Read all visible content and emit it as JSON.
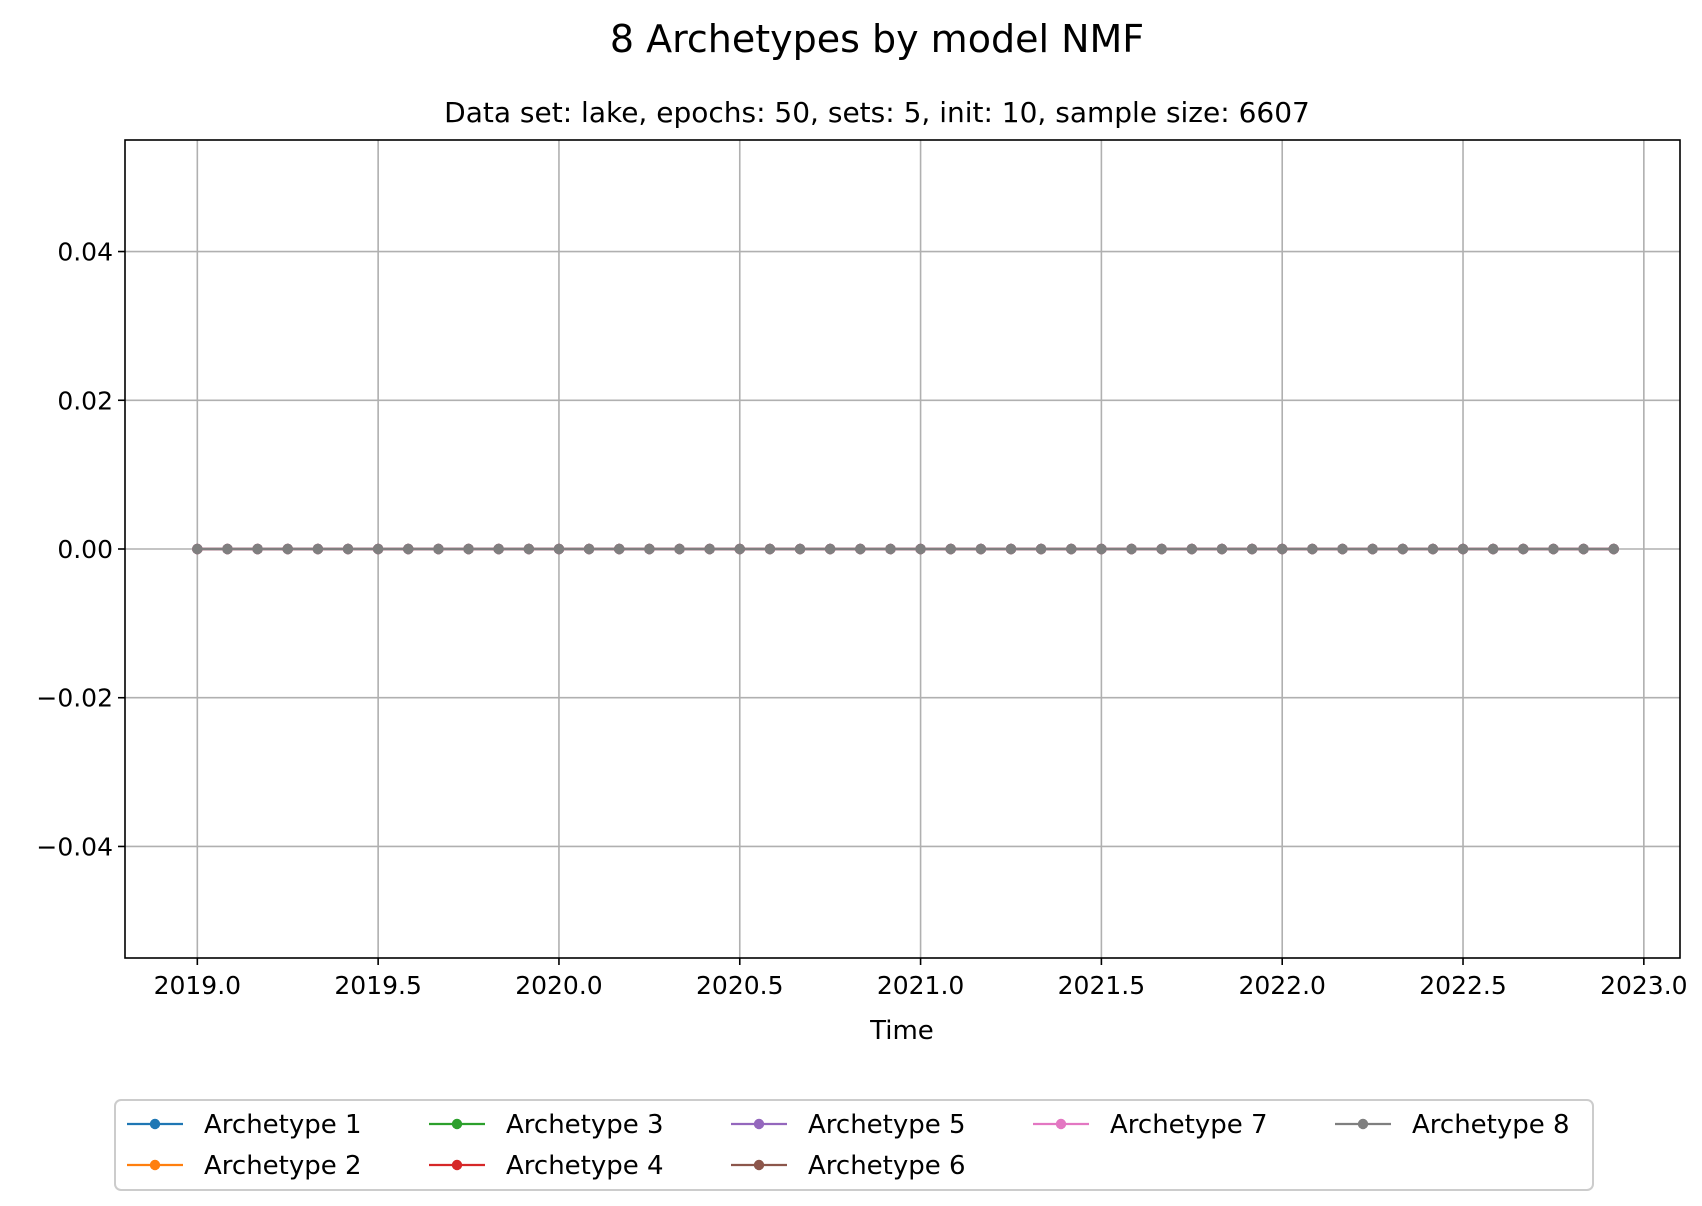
{
  "chart_data": {
    "type": "line",
    "title": "8 Archetypes by model NMF",
    "subtitle": "Data set: lake, epochs: 50, sets: 5, init: 10, sample size: 6607",
    "xlabel": "Time",
    "ylabel": "",
    "xlim": [
      2018.8,
      2023.1
    ],
    "ylim": [
      -0.055,
      0.055
    ],
    "x_ticks": [
      2019.0,
      2019.5,
      2020.0,
      2020.5,
      2021.0,
      2021.5,
      2022.0,
      2022.5,
      2023.0
    ],
    "x_tick_labels": [
      "2019.0",
      "2019.5",
      "2020.0",
      "2020.5",
      "2021.0",
      "2021.5",
      "2022.0",
      "2022.5",
      "2023.0"
    ],
    "y_ticks": [
      0.04,
      0.02,
      0.0,
      -0.02,
      -0.04
    ],
    "y_tick_labels": [
      "0.04",
      "0.02",
      "0.00",
      "−0.02",
      "−0.04"
    ],
    "grid": true,
    "legend_position": "bottom-center",
    "x": [
      2019.0,
      2019.0833,
      2019.1667,
      2019.25,
      2019.3333,
      2019.4167,
      2019.5,
      2019.5833,
      2019.6667,
      2019.75,
      2019.8333,
      2019.9167,
      2020.0,
      2020.0833,
      2020.1667,
      2020.25,
      2020.3333,
      2020.4167,
      2020.5,
      2020.5833,
      2020.6667,
      2020.75,
      2020.8333,
      2020.9167,
      2021.0,
      2021.0833,
      2021.1667,
      2021.25,
      2021.3333,
      2021.4167,
      2021.5,
      2021.5833,
      2021.6667,
      2021.75,
      2021.8333,
      2021.9167,
      2022.0,
      2022.0833,
      2022.1667,
      2022.25,
      2022.3333,
      2022.4167,
      2022.5,
      2022.5833,
      2022.6667,
      2022.75,
      2022.8333,
      2022.9167
    ],
    "series": [
      {
        "name": "Archetype 1",
        "color": "#1f77b4",
        "values": [
          0,
          0,
          0,
          0,
          0,
          0,
          0,
          0,
          0,
          0,
          0,
          0,
          0,
          0,
          0,
          0,
          0,
          0,
          0,
          0,
          0,
          0,
          0,
          0,
          0,
          0,
          0,
          0,
          0,
          0,
          0,
          0,
          0,
          0,
          0,
          0,
          0,
          0,
          0,
          0,
          0,
          0,
          0,
          0,
          0,
          0,
          0,
          0
        ]
      },
      {
        "name": "Archetype 2",
        "color": "#ff7f0e",
        "values": [
          0,
          0,
          0,
          0,
          0,
          0,
          0,
          0,
          0,
          0,
          0,
          0,
          0,
          0,
          0,
          0,
          0,
          0,
          0,
          0,
          0,
          0,
          0,
          0,
          0,
          0,
          0,
          0,
          0,
          0,
          0,
          0,
          0,
          0,
          0,
          0,
          0,
          0,
          0,
          0,
          0,
          0,
          0,
          0,
          0,
          0,
          0,
          0
        ]
      },
      {
        "name": "Archetype 3",
        "color": "#2ca02c",
        "values": [
          0,
          0,
          0,
          0,
          0,
          0,
          0,
          0,
          0,
          0,
          0,
          0,
          0,
          0,
          0,
          0,
          0,
          0,
          0,
          0,
          0,
          0,
          0,
          0,
          0,
          0,
          0,
          0,
          0,
          0,
          0,
          0,
          0,
          0,
          0,
          0,
          0,
          0,
          0,
          0,
          0,
          0,
          0,
          0,
          0,
          0,
          0,
          0
        ]
      },
      {
        "name": "Archetype 4",
        "color": "#d62728",
        "values": [
          0,
          0,
          0,
          0,
          0,
          0,
          0,
          0,
          0,
          0,
          0,
          0,
          0,
          0,
          0,
          0,
          0,
          0,
          0,
          0,
          0,
          0,
          0,
          0,
          0,
          0,
          0,
          0,
          0,
          0,
          0,
          0,
          0,
          0,
          0,
          0,
          0,
          0,
          0,
          0,
          0,
          0,
          0,
          0,
          0,
          0,
          0,
          0
        ]
      },
      {
        "name": "Archetype 5",
        "color": "#9467bd",
        "values": [
          0,
          0,
          0,
          0,
          0,
          0,
          0,
          0,
          0,
          0,
          0,
          0,
          0,
          0,
          0,
          0,
          0,
          0,
          0,
          0,
          0,
          0,
          0,
          0,
          0,
          0,
          0,
          0,
          0,
          0,
          0,
          0,
          0,
          0,
          0,
          0,
          0,
          0,
          0,
          0,
          0,
          0,
          0,
          0,
          0,
          0,
          0,
          0
        ]
      },
      {
        "name": "Archetype 6",
        "color": "#8c564b",
        "values": [
          0,
          0,
          0,
          0,
          0,
          0,
          0,
          0,
          0,
          0,
          0,
          0,
          0,
          0,
          0,
          0,
          0,
          0,
          0,
          0,
          0,
          0,
          0,
          0,
          0,
          0,
          0,
          0,
          0,
          0,
          0,
          0,
          0,
          0,
          0,
          0,
          0,
          0,
          0,
          0,
          0,
          0,
          0,
          0,
          0,
          0,
          0,
          0
        ]
      },
      {
        "name": "Archetype 7",
        "color": "#e377c2",
        "values": [
          0,
          0,
          0,
          0,
          0,
          0,
          0,
          0,
          0,
          0,
          0,
          0,
          0,
          0,
          0,
          0,
          0,
          0,
          0,
          0,
          0,
          0,
          0,
          0,
          0,
          0,
          0,
          0,
          0,
          0,
          0,
          0,
          0,
          0,
          0,
          0,
          0,
          0,
          0,
          0,
          0,
          0,
          0,
          0,
          0,
          0,
          0,
          0
        ]
      },
      {
        "name": "Archetype 8",
        "color": "#7f7f7f",
        "values": [
          0,
          0,
          0,
          0,
          0,
          0,
          0,
          0,
          0,
          0,
          0,
          0,
          0,
          0,
          0,
          0,
          0,
          0,
          0,
          0,
          0,
          0,
          0,
          0,
          0,
          0,
          0,
          0,
          0,
          0,
          0,
          0,
          0,
          0,
          0,
          0,
          0,
          0,
          0,
          0,
          0,
          0,
          0,
          0,
          0,
          0,
          0,
          0
        ]
      }
    ]
  }
}
